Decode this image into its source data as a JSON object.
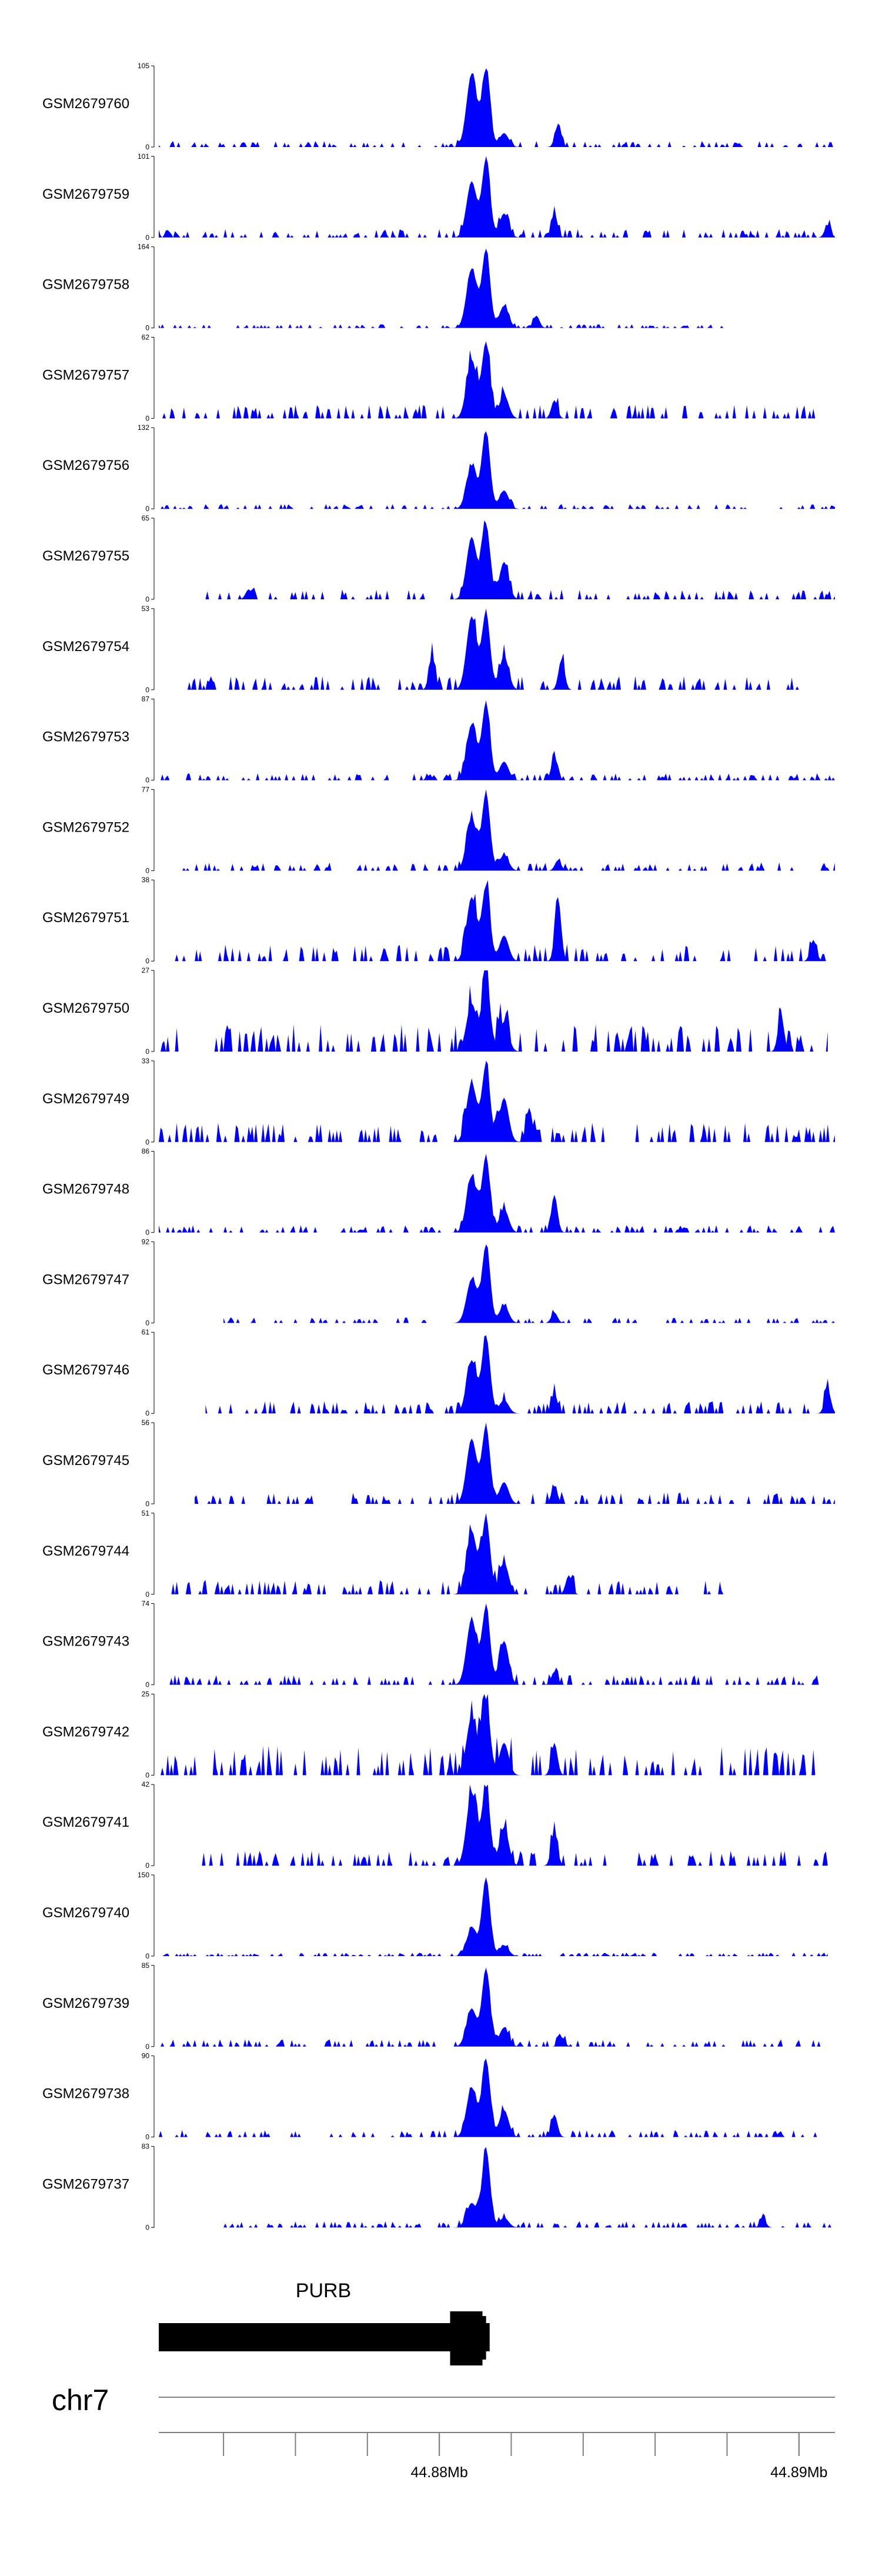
{
  "colors": {
    "track_fill": "#0000ff",
    "axis": "#000000",
    "gene": "#000000",
    "ruler": "#808080"
  },
  "chart_data": {
    "type": "area",
    "title": "",
    "xlabel": "chr7",
    "ylabel": "",
    "chromosome": "chr7",
    "xlim": [
      44.8722,
      44.891
    ],
    "x_unit": "Mb",
    "ruler": {
      "labeled_ticks": [
        {
          "pos": 44.88,
          "label": "44.88Mb"
        },
        {
          "pos": 44.89,
          "label": "44.89Mb"
        }
      ],
      "minor_ticks": [
        44.874,
        44.876,
        44.878,
        44.88,
        44.882,
        44.884,
        44.886,
        44.888,
        44.89
      ]
    },
    "gene": {
      "name": "PURB",
      "start": 44.8722,
      "end": 44.8814,
      "cds_start": 44.8803,
      "cds_end": 44.8812,
      "thick_start": 44.8804,
      "thick_end": 44.8813
    },
    "peak_center": 44.8813,
    "tracks": [
      {
        "name": "GSM2679760",
        "ymax": 105,
        "start": 44.8722,
        "end": 44.891,
        "bg": 6,
        "peak": [
          100,
          95,
          18
        ],
        "secondary": [
          {
            "pos": 44.8833,
            "height": 28
          }
        ],
        "seed": 1
      },
      {
        "name": "GSM2679759",
        "ymax": 101,
        "start": 44.8722,
        "end": 44.891,
        "bg": 8,
        "peak": [
          96,
          70,
          30
        ],
        "secondary": [
          {
            "pos": 44.8832,
            "height": 30
          },
          {
            "pos": 44.8908,
            "height": 15
          }
        ],
        "seed": 2
      },
      {
        "name": "GSM2679758",
        "ymax": 164,
        "start": 44.8722,
        "end": 44.888,
        "bg": 6,
        "peak": [
          158,
          120,
          45
        ],
        "secondary": [
          {
            "pos": 44.8827,
            "height": 25
          }
        ],
        "seed": 3
      },
      {
        "name": "GSM2679757",
        "ymax": 62,
        "start": 44.8722,
        "end": 44.8905,
        "bg": 8,
        "peak": [
          58,
          45,
          18
        ],
        "secondary": [
          {
            "pos": 44.8832,
            "height": 14
          }
        ],
        "seed": 4
      },
      {
        "name": "GSM2679756",
        "ymax": 132,
        "start": 44.8722,
        "end": 44.891,
        "bg": 6,
        "peak": [
          125,
          70,
          30
        ],
        "secondary": [],
        "seed": 5
      },
      {
        "name": "GSM2679755",
        "ymax": 65,
        "start": 44.8735,
        "end": 44.891,
        "bg": 6,
        "peak": [
          60,
          50,
          30
        ],
        "secondary": [
          {
            "pos": 44.8747,
            "height": 8
          }
        ],
        "seed": 6
      },
      {
        "name": "GSM2679754",
        "ymax": 53,
        "start": 44.873,
        "end": 44.89,
        "bg": 7,
        "peak": [
          50,
          48,
          22
        ],
        "secondary": [
          {
            "pos": 44.8798,
            "height": 22
          },
          {
            "pos": 44.8834,
            "height": 20
          }
        ],
        "seed": 7
      },
      {
        "name": "GSM2679753",
        "ymax": 87,
        "start": 44.8722,
        "end": 44.891,
        "bg": 6,
        "peak": [
          82,
          60,
          20
        ],
        "secondary": [
          {
            "pos": 44.8832,
            "height": 25
          }
        ],
        "seed": 8
      },
      {
        "name": "GSM2679752",
        "ymax": 77,
        "start": 44.8725,
        "end": 44.891,
        "bg": 6,
        "peak": [
          73,
          50,
          15
        ],
        "secondary": [
          {
            "pos": 44.8833,
            "height": 10
          }
        ],
        "seed": 9
      },
      {
        "name": "GSM2679751",
        "ymax": 38,
        "start": 44.8722,
        "end": 44.891,
        "bg": 6,
        "peak": [
          35,
          30,
          12
        ],
        "secondary": [
          {
            "pos": 44.8833,
            "height": 30
          },
          {
            "pos": 44.8904,
            "height": 10
          }
        ],
        "seed": 10
      },
      {
        "name": "GSM2679750",
        "ymax": 27,
        "start": 44.8722,
        "end": 44.8908,
        "bg": 7,
        "peak": [
          25,
          16,
          10
        ],
        "secondary": [
          {
            "pos": 44.8895,
            "height": 12
          }
        ],
        "seed": 11
      },
      {
        "name": "GSM2679749",
        "ymax": 33,
        "start": 44.8722,
        "end": 44.891,
        "bg": 6,
        "peak": [
          31,
          24,
          18
        ],
        "secondary": [
          {
            "pos": 44.8825,
            "height": 14
          }
        ],
        "seed": 12
      },
      {
        "name": "GSM2679748",
        "ymax": 86,
        "start": 44.8722,
        "end": 44.891,
        "bg": 6,
        "peak": [
          80,
          60,
          25
        ],
        "secondary": [
          {
            "pos": 44.8832,
            "height": 40
          }
        ],
        "seed": 13
      },
      {
        "name": "GSM2679747",
        "ymax": 92,
        "start": 44.874,
        "end": 44.891,
        "bg": 5,
        "peak": [
          88,
          50,
          20
        ],
        "secondary": [
          {
            "pos": 44.8832,
            "height": 12
          }
        ],
        "seed": 14
      },
      {
        "name": "GSM2679746",
        "ymax": 61,
        "start": 44.8735,
        "end": 44.891,
        "bg": 7,
        "peak": [
          58,
          40,
          10
        ],
        "secondary": [
          {
            "pos": 44.8832,
            "height": 15
          },
          {
            "pos": 44.8908,
            "height": 18
          }
        ],
        "seed": 15
      },
      {
        "name": "GSM2679745",
        "ymax": 56,
        "start": 44.8732,
        "end": 44.891,
        "bg": 6,
        "peak": [
          53,
          45,
          15
        ],
        "secondary": [
          {
            "pos": 44.8832,
            "height": 12
          }
        ],
        "seed": 16
      },
      {
        "name": "GSM2679744",
        "ymax": 51,
        "start": 44.8722,
        "end": 44.888,
        "bg": 7,
        "peak": [
          48,
          40,
          20
        ],
        "secondary": [
          {
            "pos": 44.8836,
            "height": 12
          }
        ],
        "seed": 17
      },
      {
        "name": "GSM2679743",
        "ymax": 74,
        "start": 44.8725,
        "end": 44.8908,
        "bg": 7,
        "peak": [
          70,
          60,
          40
        ],
        "secondary": [
          {
            "pos": 44.8832,
            "height": 12
          }
        ],
        "seed": 18
      },
      {
        "name": "GSM2679742",
        "ymax": 25,
        "start": 44.8722,
        "end": 44.8905,
        "bg": 7,
        "peak": [
          23,
          18,
          10
        ],
        "secondary": [
          {
            "pos": 44.8832,
            "height": 10
          }
        ],
        "seed": 19
      },
      {
        "name": "GSM2679741",
        "ymax": 42,
        "start": 44.8733,
        "end": 44.8908,
        "bg": 6,
        "peak": [
          40,
          38,
          20
        ],
        "secondary": [
          {
            "pos": 44.8832,
            "height": 18
          }
        ],
        "seed": 20
      },
      {
        "name": "GSM2679740",
        "ymax": 150,
        "start": 44.8722,
        "end": 44.8908,
        "bg": 5,
        "peak": [
          145,
          50,
          20
        ],
        "secondary": [],
        "seed": 21
      },
      {
        "name": "GSM2679739",
        "ymax": 85,
        "start": 44.8722,
        "end": 44.8908,
        "bg": 6,
        "peak": [
          82,
          40,
          20
        ],
        "secondary": [
          {
            "pos": 44.8834,
            "height": 10
          }
        ],
        "seed": 22
      },
      {
        "name": "GSM2679738",
        "ymax": 90,
        "start": 44.8722,
        "end": 44.8908,
        "bg": 6,
        "peak": [
          86,
          55,
          30
        ],
        "secondary": [
          {
            "pos": 44.8832,
            "height": 25
          }
        ],
        "seed": 23
      },
      {
        "name": "GSM2679737",
        "ymax": 83,
        "start": 44.874,
        "end": 44.891,
        "bg": 5,
        "peak": [
          80,
          25,
          10
        ],
        "secondary": [
          {
            "pos": 44.889,
            "height": 8
          }
        ],
        "seed": 24
      }
    ]
  }
}
